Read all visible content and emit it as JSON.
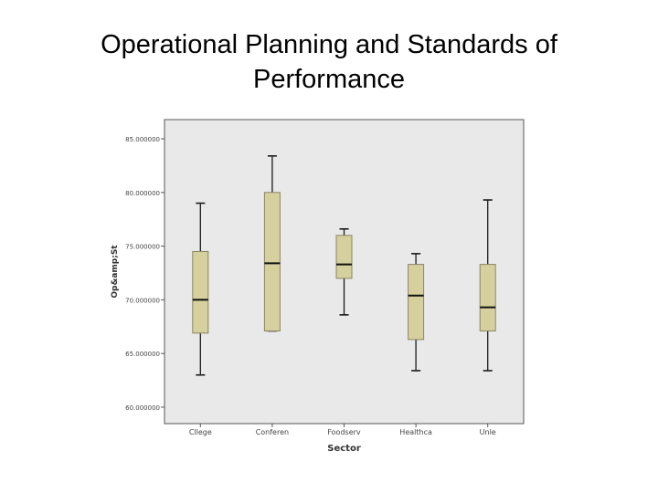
{
  "slide": {
    "title_line1": "Operational Planning and Standards of",
    "title_line2": "Performance"
  },
  "chart_data": {
    "type": "boxplot",
    "xlabel": "Sector",
    "ylabel": "Op&amp;St",
    "ylim": [
      60,
      85
    ],
    "y_ticks": [
      60,
      65,
      70,
      75,
      80,
      85
    ],
    "y_tick_labels": [
      "60.000000",
      "65.000000",
      "70.000000",
      "75.000000",
      "80.000000",
      "85.000000"
    ],
    "categories": [
      "Cllege",
      "Conferen",
      "Foodserv",
      "Healthca",
      "Unle"
    ],
    "boxes": [
      {
        "min": 63.0,
        "q1": 66.9,
        "median": 70.0,
        "q3": 74.5,
        "max": 79.0
      },
      {
        "min": 67.1,
        "q1": 67.1,
        "median": 73.4,
        "q3": 80.0,
        "max": 83.4
      },
      {
        "min": 68.6,
        "q1": 72.0,
        "median": 73.3,
        "q3": 76.0,
        "max": 76.6
      },
      {
        "min": 63.4,
        "q1": 66.3,
        "median": 70.4,
        "q3": 73.3,
        "max": 74.3
      },
      {
        "min": 63.4,
        "q1": 67.1,
        "median": 69.3,
        "q3": 73.3,
        "max": 79.3
      }
    ],
    "grid": false,
    "colors": {
      "plot_background": "#e9e9e9",
      "box_fill": "#d6cf9e",
      "box_stroke": "#8a8660",
      "whisker": "#1a1a1a"
    }
  }
}
